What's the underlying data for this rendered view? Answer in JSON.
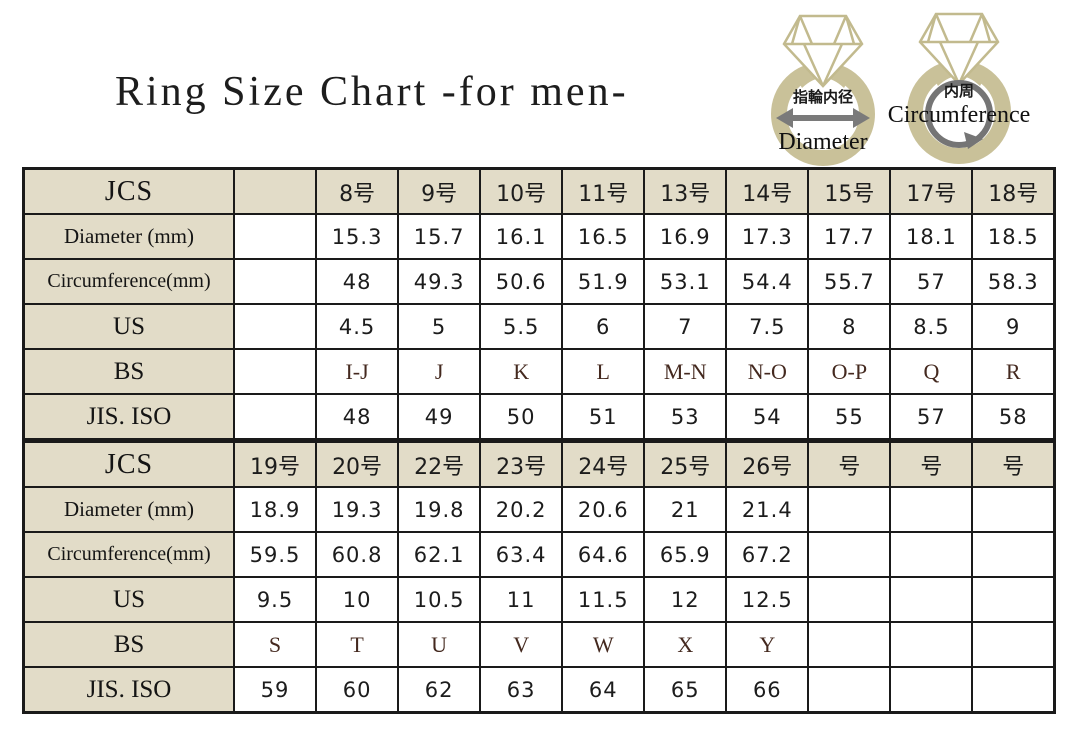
{
  "page": {
    "title": "Ring Size Chart -for men-"
  },
  "colors": {
    "ring_band": "#c9c199",
    "diamond_stroke": "#c2ba8e",
    "header_cell_bg": "#e2dcc8",
    "table_border": "#1a1a1a",
    "arrow_gray": "#7a7a7a",
    "bs_text": "#44291f"
  },
  "diagrams": {
    "diameter_ring": {
      "label_ja": "指輪内径",
      "label_en": "Diameter"
    },
    "circumference_ring": {
      "label_ja": "内周",
      "label_en": "Circumference"
    }
  },
  "tables": [
    {
      "rows": [
        {
          "label": "JCS",
          "header": true,
          "cells": [
            "",
            "8号",
            "9号",
            "10号",
            "11号",
            "13号",
            "14号",
            "15号",
            "17号",
            "18号"
          ]
        },
        {
          "label": "Diameter (mm)",
          "cells": [
            "",
            "15.3",
            "15.7",
            "16.1",
            "16.5",
            "16.9",
            "17.3",
            "17.7",
            "18.1",
            "18.5"
          ]
        },
        {
          "label": "Circumference(mm)",
          "cells": [
            "",
            "48",
            "49.3",
            "50.6",
            "51.9",
            "53.1",
            "54.4",
            "55.7",
            "57",
            "58.3"
          ]
        },
        {
          "label": "US",
          "cells": [
            "",
            "4.5",
            "5",
            "5.5",
            "6",
            "7",
            "7.5",
            "8",
            "8.5",
            "9"
          ]
        },
        {
          "label": "BS",
          "serif_values": true,
          "cells": [
            "",
            "I-J",
            "J",
            "K",
            "L",
            "M-N",
            "N-O",
            "O-P",
            "Q",
            "R"
          ]
        },
        {
          "label": "JIS. ISO",
          "cells": [
            "",
            "48",
            "49",
            "50",
            "51",
            "53",
            "54",
            "55",
            "57",
            "58"
          ]
        }
      ]
    },
    {
      "rows": [
        {
          "label": "JCS",
          "header": true,
          "cells": [
            "19号",
            "20号",
            "22号",
            "23号",
            "24号",
            "25号",
            "26号",
            "号",
            "号",
            "号"
          ]
        },
        {
          "label": "Diameter (mm)",
          "cells": [
            "18.9",
            "19.3",
            "19.8",
            "20.2",
            "20.6",
            "21",
            "21.4",
            "",
            "",
            ""
          ]
        },
        {
          "label": "Circumference(mm)",
          "cells": [
            "59.5",
            "60.8",
            "62.1",
            "63.4",
            "64.6",
            "65.9",
            "67.2",
            "",
            "",
            ""
          ]
        },
        {
          "label": "US",
          "cells": [
            "9.5",
            "10",
            "10.5",
            "11",
            "11.5",
            "12",
            "12.5",
            "",
            "",
            ""
          ]
        },
        {
          "label": "BS",
          "serif_values": true,
          "cells": [
            "S",
            "T",
            "U",
            "V",
            "W",
            "X",
            "Y",
            "",
            "",
            ""
          ]
        },
        {
          "label": "JIS. ISO",
          "cells": [
            "59",
            "60",
            "62",
            "63",
            "64",
            "65",
            "66",
            "",
            "",
            ""
          ]
        }
      ]
    }
  ]
}
